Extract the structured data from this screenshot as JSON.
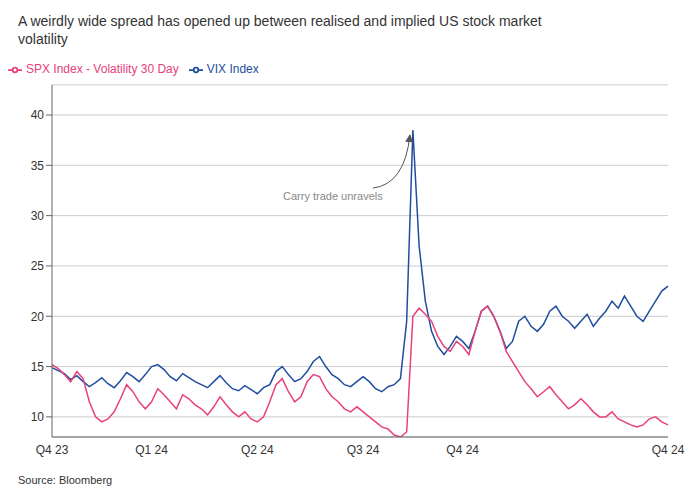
{
  "chart_data": {
    "type": "line",
    "title": "A weirdly wide spread has opened up between realised and implied US stock market\nvolatility",
    "source": "Source: Bloomberg",
    "annotation": "Carry trade unravels",
    "categories": [
      "Q4 23",
      null,
      null,
      null,
      null,
      null,
      null,
      null,
      null,
      null,
      null,
      null,
      null,
      null,
      null,
      null,
      "Q1 24",
      null,
      null,
      null,
      null,
      null,
      null,
      null,
      null,
      null,
      null,
      null,
      null,
      null,
      null,
      null,
      null,
      "Q2 24",
      null,
      null,
      null,
      null,
      null,
      null,
      null,
      null,
      null,
      null,
      null,
      null,
      null,
      null,
      null,
      null,
      "Q3 24",
      null,
      null,
      null,
      null,
      null,
      null,
      null,
      null,
      null,
      null,
      null,
      null,
      null,
      null,
      null,
      "Q4 24",
      null,
      null,
      null,
      null,
      null,
      null,
      null,
      null,
      null,
      null,
      null,
      null,
      null,
      null,
      null,
      null,
      null,
      null,
      null,
      null,
      null,
      null,
      null,
      null,
      null,
      null,
      null,
      null,
      null,
      null,
      null,
      null,
      "Q4 24"
    ],
    "series": [
      {
        "name": "VIX Index",
        "color": "#1f4e9e",
        "values": [
          14.9,
          14.6,
          14.3,
          13.7,
          14.1,
          13.5,
          13.0,
          13.4,
          13.9,
          13.3,
          12.9,
          13.6,
          14.4,
          14.0,
          13.5,
          14.2,
          15.0,
          15.2,
          14.7,
          14.0,
          13.6,
          14.3,
          13.9,
          13.5,
          13.2,
          12.9,
          13.5,
          14.1,
          13.4,
          12.8,
          12.6,
          13.1,
          12.7,
          12.3,
          12.9,
          13.2,
          14.5,
          15.0,
          14.2,
          13.5,
          13.8,
          14.5,
          15.5,
          16.0,
          15.0,
          14.2,
          13.8,
          13.2,
          13.0,
          13.5,
          14.0,
          13.5,
          12.8,
          12.5,
          13.0,
          13.2,
          13.8,
          19.5,
          38.5,
          27.0,
          21.5,
          18.5,
          17.0,
          16.2,
          17.0,
          18.0,
          17.5,
          16.8,
          18.5,
          20.5,
          21.0,
          20.0,
          18.5,
          16.8,
          17.5,
          19.5,
          20.0,
          19.0,
          18.5,
          19.2,
          20.5,
          21.0,
          20.0,
          19.5,
          18.8,
          19.5,
          20.2,
          19.0,
          19.8,
          20.5,
          21.5,
          20.8,
          22.0,
          21.0,
          20.0,
          19.5,
          20.5,
          21.5,
          22.5,
          23.0
        ]
      },
      {
        "name": "SPX Index - Volatility 30 Day",
        "color": "#e8417a",
        "values": [
          15.2,
          14.8,
          14.2,
          13.5,
          14.5,
          13.8,
          11.5,
          10.0,
          9.5,
          9.8,
          10.5,
          11.8,
          13.2,
          12.5,
          11.5,
          10.8,
          11.5,
          12.8,
          12.2,
          11.5,
          10.8,
          12.2,
          11.8,
          11.2,
          10.8,
          10.2,
          11.0,
          12.0,
          11.2,
          10.5,
          10.0,
          10.5,
          9.8,
          9.5,
          10.0,
          11.5,
          13.2,
          13.8,
          12.5,
          11.5,
          12.0,
          13.5,
          14.2,
          14.0,
          12.8,
          12.0,
          11.5,
          10.8,
          10.5,
          11.0,
          10.5,
          10.0,
          9.5,
          9.0,
          8.8,
          8.2,
          8.0,
          8.5,
          20.0,
          20.8,
          20.2,
          19.5,
          18.0,
          17.0,
          16.5,
          17.5,
          17.0,
          16.2,
          18.5,
          20.5,
          21.0,
          20.0,
          18.5,
          16.5,
          15.5,
          14.5,
          13.5,
          12.8,
          12.0,
          12.5,
          13.0,
          12.2,
          11.5,
          10.8,
          11.2,
          11.8,
          11.2,
          10.5,
          10.0,
          10.0,
          10.5,
          9.8,
          9.5,
          9.2,
          9.0,
          9.2,
          9.8,
          10.0,
          9.5,
          9.2
        ]
      }
    ],
    "ylim": [
      8,
      43
    ],
    "yticks": [
      10,
      15,
      20,
      25,
      30,
      35,
      40
    ],
    "grid": true,
    "legend": "top-left"
  }
}
